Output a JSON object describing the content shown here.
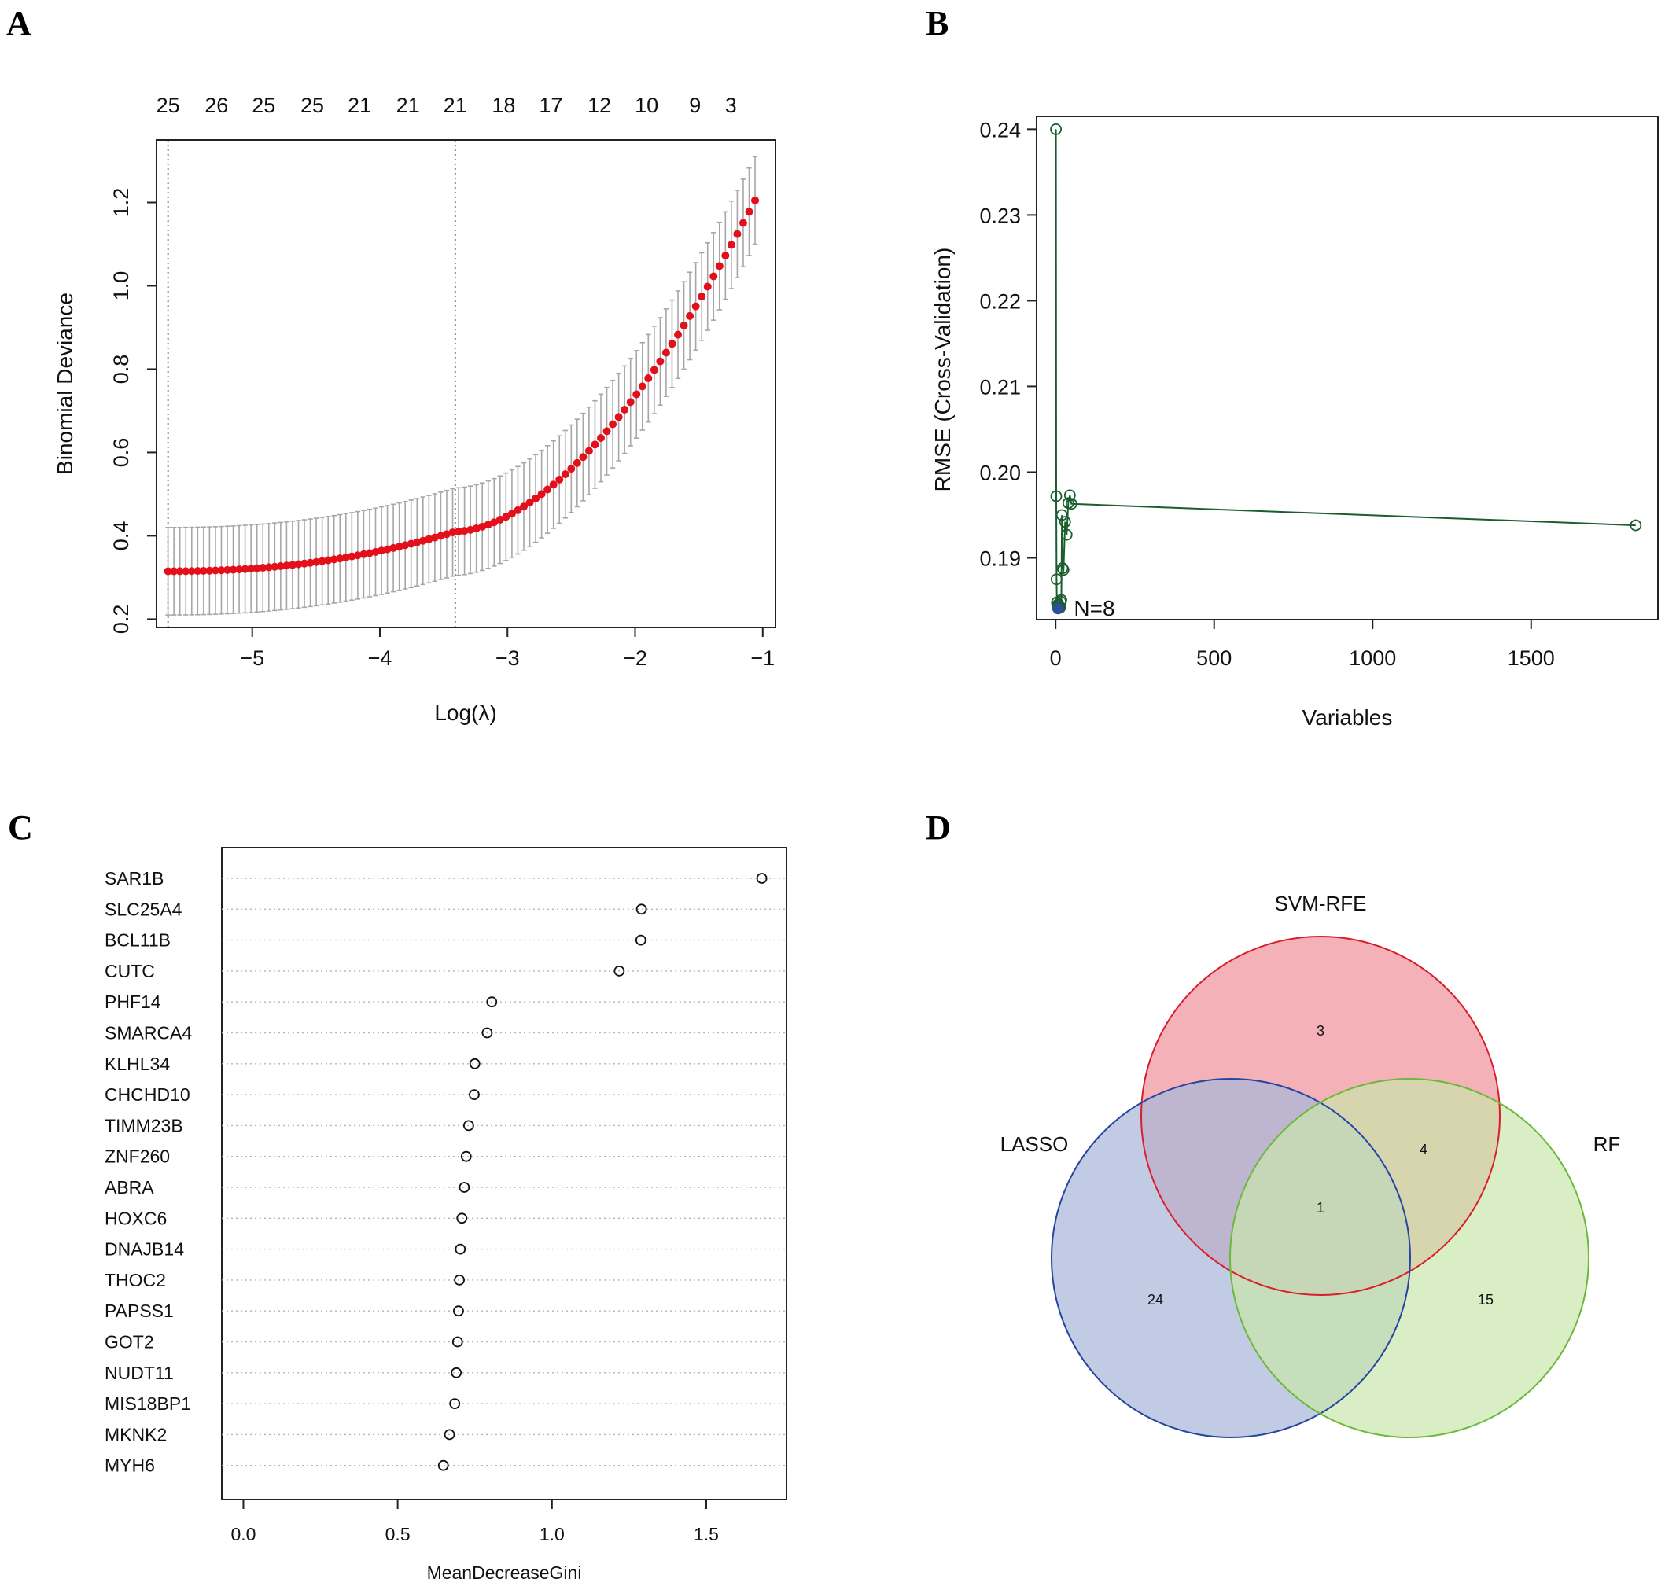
{
  "chart_data": [
    {
      "panel": "A",
      "type": "scatter",
      "xlabel": "Log(λ)",
      "ylabel": "Binomial Deviance",
      "xlim": [
        -5.75,
        -0.9
      ],
      "ylim": [
        0.18,
        1.35
      ],
      "x_ticks": [
        "−5",
        "−4",
        "−3",
        "−2",
        "−1"
      ],
      "x_tick_values": [
        -5,
        -4,
        -3,
        -2,
        -1
      ],
      "y_ticks": [
        "0.2",
        "0.4",
        "0.6",
        "0.8",
        "1.0",
        "1.2"
      ],
      "y_tick_values": [
        0.2,
        0.4,
        0.6,
        0.8,
        1.0,
        1.2
      ],
      "top_axis_labels": [
        "25",
        "26",
        "25",
        "25",
        "21",
        "21",
        "21",
        "18",
        "17",
        "12",
        "10",
        "9",
        "3"
      ],
      "top_axis_values": [
        -5.66,
        -5.28,
        -4.91,
        -4.53,
        -4.16,
        -3.78,
        -3.41,
        -3.03,
        -2.66,
        -2.28,
        -1.91,
        -1.53,
        -1.25
      ],
      "reference_lines": [
        -5.66,
        -3.41
      ],
      "curve": {
        "x_start": -5.66,
        "x_end": -1.06,
        "n_points": 100,
        "y_start": 0.315,
        "y_mid_x": -3.41,
        "y_mid": 0.41,
        "y_end": 1.205
      },
      "error_bar": {
        "half_width_start": 0.105,
        "half_width_end": 0.105
      },
      "point_color": "#e3101c",
      "errorbar_color": "#a6a6a6"
    },
    {
      "panel": "B",
      "type": "line",
      "xlabel": "Variables",
      "ylabel": "RMSE (Cross-Validation)",
      "xlim": [
        -60,
        1900
      ],
      "ylim": [
        0.1828,
        0.2415
      ],
      "x_ticks": [
        "0",
        "500",
        "1000",
        "1500"
      ],
      "x_tick_values": [
        0,
        500,
        1000,
        1500
      ],
      "y_ticks": [
        "0.19",
        "0.20",
        "0.21",
        "0.22",
        "0.23",
        "0.24"
      ],
      "y_tick_values": [
        0.19,
        0.2,
        0.21,
        0.22,
        0.23,
        0.24
      ],
      "x": [
        1,
        2,
        3,
        4,
        5,
        6,
        7,
        8,
        9,
        10,
        12,
        14,
        16,
        18,
        20,
        22,
        25,
        30,
        35,
        40,
        45,
        50,
        1830
      ],
      "y": [
        0.24,
        0.1972,
        0.1875,
        0.1848,
        0.1845,
        0.1843,
        0.1842,
        0.1841,
        0.1846,
        0.1843,
        0.1842,
        0.1842,
        0.1849,
        0.1851,
        0.195,
        0.1888,
        0.1886,
        0.1942,
        0.1927,
        0.1964,
        0.1973,
        0.1963,
        0.1938
      ],
      "best": {
        "x": 8,
        "y": 0.1841,
        "label": "N=8"
      },
      "line_color": "#1a5e2e",
      "best_color": "#2b4f9e",
      "label_color": "#e0557a"
    },
    {
      "panel": "C",
      "type": "scatter",
      "xlabel": "MeanDecreaseGini",
      "xlim": [
        -0.07,
        1.76
      ],
      "x_ticks": [
        "0.0",
        "0.5",
        "1.0",
        "1.5"
      ],
      "x_tick_values": [
        0,
        0.5,
        1.0,
        1.5
      ],
      "categories": [
        "SAR1B",
        "SLC25A4",
        "BCL11B",
        "CUTC",
        "PHF14",
        "SMARCA4",
        "KLHL34",
        "CHCHD10",
        "TIMM23B",
        "ZNF260",
        "ABRA",
        "HOXC6",
        "DNAJB14",
        "THOC2",
        "PAPSS1",
        "GOT2",
        "NUDT11",
        "MIS18BP1",
        "MKNK2",
        "MYH6"
      ],
      "values": [
        1.68,
        1.29,
        1.288,
        1.218,
        0.805,
        0.79,
        0.75,
        0.748,
        0.73,
        0.722,
        0.716,
        0.708,
        0.703,
        0.7,
        0.697,
        0.694,
        0.69,
        0.685,
        0.668,
        0.648
      ]
    },
    {
      "panel": "D",
      "type": "venn",
      "sets": [
        {
          "name": "SVM-RFE",
          "fill": "#f2a3ab",
          "stroke": "#d81f2b"
        },
        {
          "name": "LASSO",
          "fill": "#a9b8da",
          "stroke": "#2545a0"
        },
        {
          "name": "RF",
          "fill": "#c8e6a9",
          "stroke": "#6cb839"
        }
      ],
      "regions": [
        {
          "label": "3",
          "sets": [
            "SVM-RFE"
          ]
        },
        {
          "label": "4",
          "sets": [
            "SVM-RFE",
            "RF"
          ]
        },
        {
          "label": "1",
          "sets": [
            "SVM-RFE",
            "LASSO",
            "RF"
          ]
        },
        {
          "label": "24",
          "sets": [
            "LASSO"
          ]
        },
        {
          "label": "15",
          "sets": [
            "RF"
          ]
        }
      ]
    }
  ],
  "panel_letters": [
    "A",
    "B",
    "C",
    "D"
  ]
}
